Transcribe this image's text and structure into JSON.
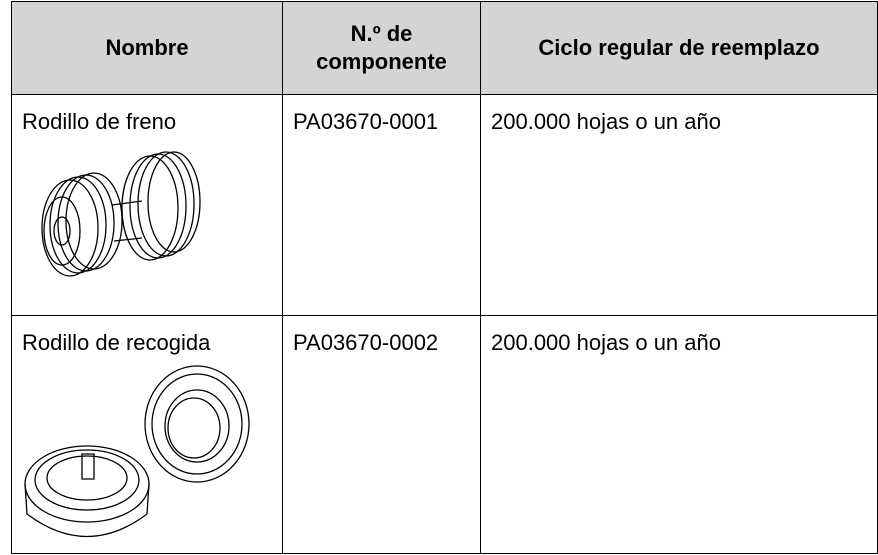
{
  "table": {
    "header": [
      "Nombre",
      "N.º de componente",
      "Ciclo regular de reemplazo"
    ],
    "rows": [
      [
        "Rodillo de freno",
        "PA03670-0001",
        "200.000 hojas o un año"
      ],
      [
        "Rodillo de recogida",
        "PA03670-0002",
        "200.000 hojas o un año"
      ]
    ]
  }
}
